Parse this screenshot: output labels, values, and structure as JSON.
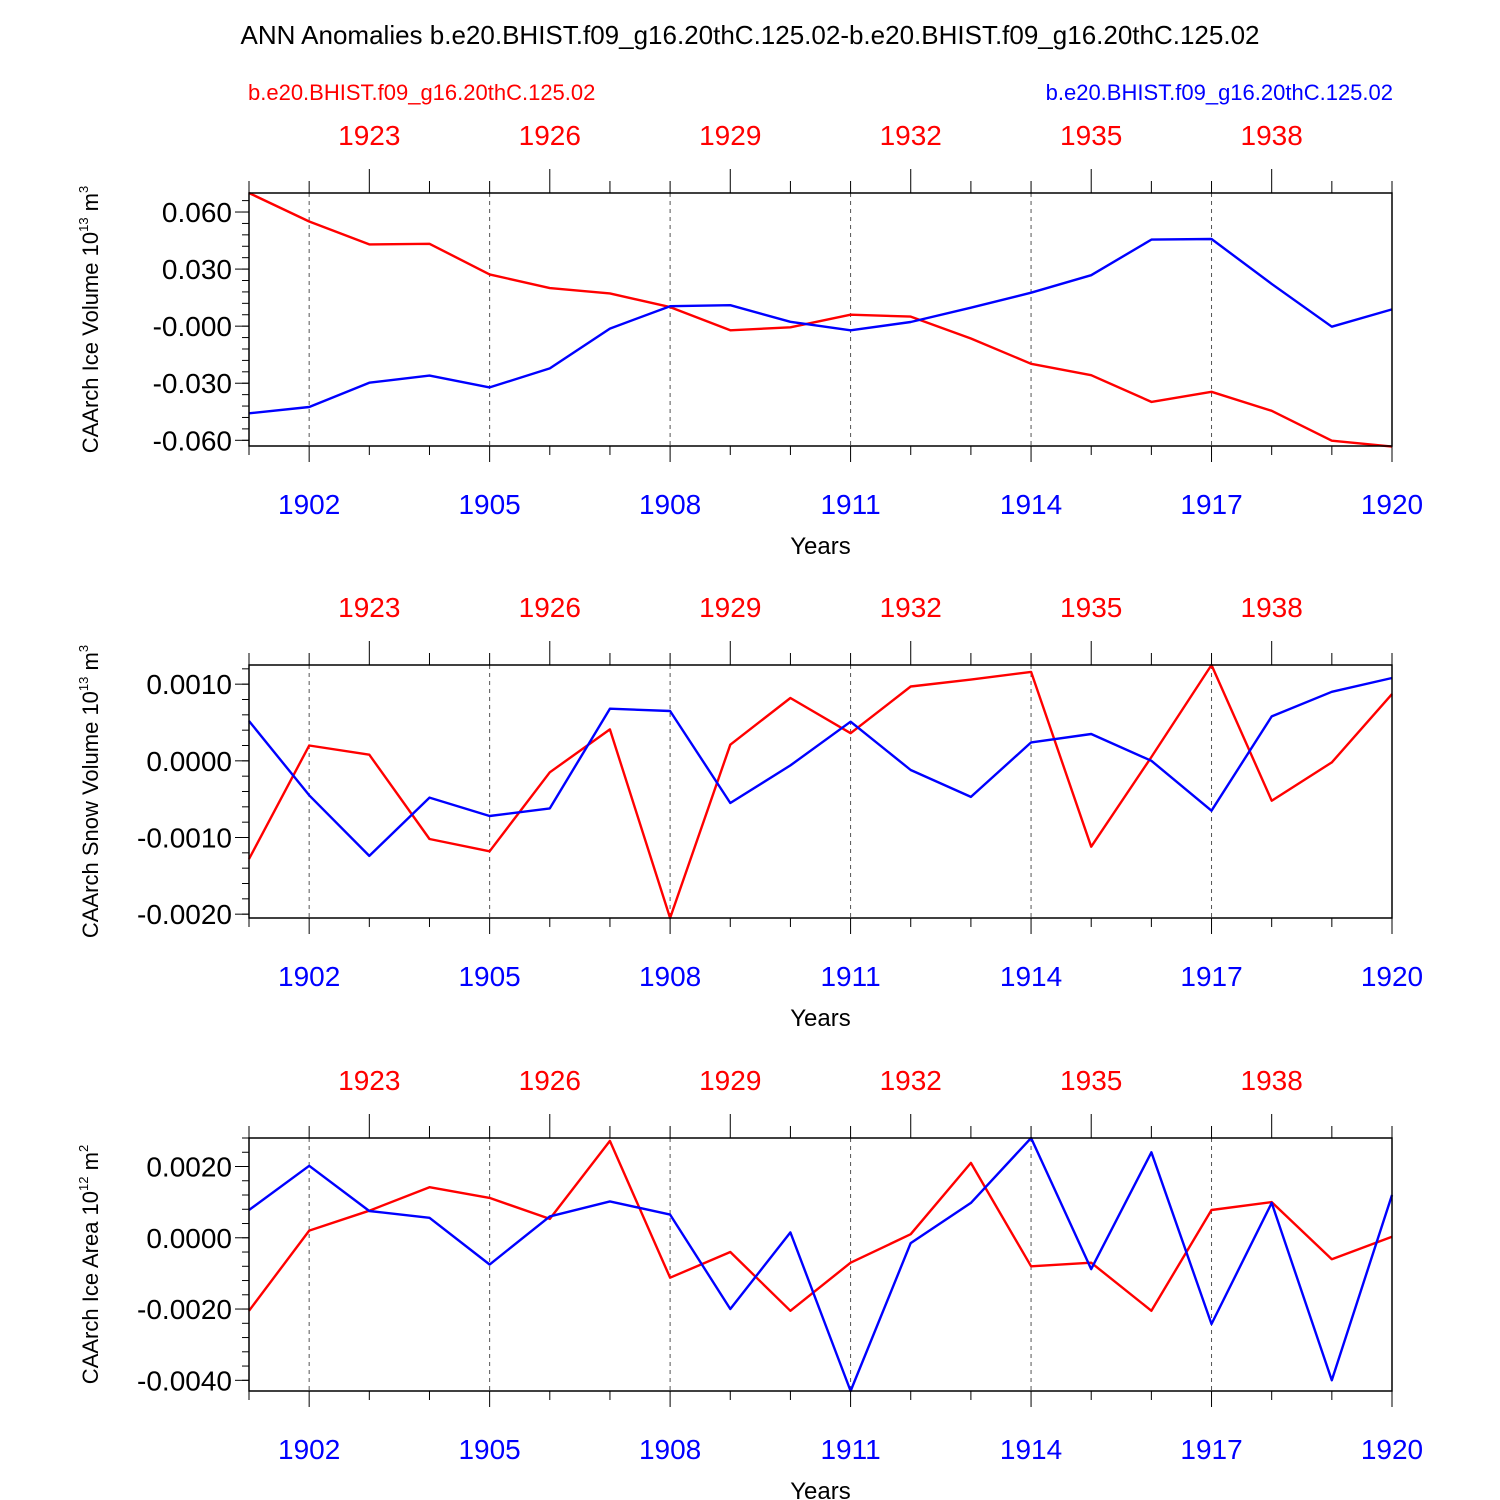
{
  "title": "ANN Anomalies b.e20.BHIST.f09_g16.20thC.125.02-b.e20.BHIST.f09_g16.20thC.125.02",
  "legend": {
    "red": "b.e20.BHIST.f09_g16.20thC.125.02",
    "blue": "b.e20.BHIST.f09_g16.20thC.125.02"
  },
  "colors": {
    "red": "#ff0000",
    "blue": "#0000ff",
    "frame": "#000000"
  },
  "chart_data": [
    {
      "type": "line",
      "ylabel": "CAArch Ice Volume 10^13 m^3",
      "ylabel_parts": {
        "base": "CAArch Ice Volume 10",
        "exp1": "13",
        "mid": " m",
        "exp2": "3"
      },
      "xlabel": "Years",
      "x_bottom": {
        "range": [
          1901,
          1920
        ],
        "ticks": [
          1902,
          1905,
          1908,
          1911,
          1914,
          1917,
          1920
        ],
        "color": "blue"
      },
      "x_top": {
        "range": [
          1921,
          1940
        ],
        "ticks": [
          1923,
          1926,
          1929,
          1932,
          1935,
          1938
        ],
        "color": "red"
      },
      "ylim": [
        -0.063,
        0.07
      ],
      "yticks": [
        {
          "v": 0.06,
          "label": "0.060"
        },
        {
          "v": 0.03,
          "label": "0.030"
        },
        {
          "v": 0.0,
          "label": "-0.000"
        },
        {
          "v": -0.03,
          "label": "-0.030"
        },
        {
          "v": -0.06,
          "label": "-0.060"
        }
      ],
      "yminor": 0.006,
      "series": [
        {
          "name": "b.e20.BHIST.f09_g16.20thC.125.02",
          "color": "red",
          "values": [
            0.07,
            0.055,
            0.043,
            0.0433,
            0.0272,
            0.02,
            0.0172,
            0.01,
            -0.0022,
            -0.0006,
            0.006,
            0.005,
            -0.0065,
            -0.0198,
            -0.0258,
            -0.0398,
            -0.0345,
            -0.0445,
            -0.0602,
            -0.0633
          ]
        },
        {
          "name": "b.e20.BHIST.f09_g16.20thC.125.02",
          "color": "blue",
          "values": [
            -0.0458,
            -0.0425,
            -0.0297,
            -0.026,
            -0.0322,
            -0.0222,
            -0.0013,
            0.0105,
            0.011,
            0.0023,
            -0.0022,
            0.0022,
            0.0097,
            0.0176,
            0.0268,
            0.0455,
            0.0458,
            0.0222,
            -0.0003,
            0.0088
          ]
        }
      ]
    },
    {
      "type": "line",
      "ylabel": "CAArch Snow Volume 10^13 m^3",
      "ylabel_parts": {
        "base": "CAArch Snow Volume 10",
        "exp1": "13",
        "mid": " m",
        "exp2": "3"
      },
      "xlabel": "Years",
      "x_bottom": {
        "range": [
          1901,
          1920
        ],
        "ticks": [
          1902,
          1905,
          1908,
          1911,
          1914,
          1917,
          1920
        ],
        "color": "blue"
      },
      "x_top": {
        "range": [
          1921,
          1940
        ],
        "ticks": [
          1923,
          1926,
          1929,
          1932,
          1935,
          1938
        ],
        "color": "red"
      },
      "ylim": [
        -0.00205,
        0.00125
      ],
      "yticks": [
        {
          "v": 0.001,
          "label": "0.0010"
        },
        {
          "v": 0.0,
          "label": "0.0000"
        },
        {
          "v": -0.001,
          "label": "-0.0010"
        },
        {
          "v": -0.002,
          "label": "-0.0020"
        }
      ],
      "yminor": 0.0002,
      "series": [
        {
          "name": "b.e20.BHIST.f09_g16.20thC.125.02",
          "color": "red",
          "values": [
            -0.00128,
            0.0002,
            8e-05,
            -0.00102,
            -0.00118,
            -0.00015,
            0.00041,
            -0.00205,
            0.00021,
            0.00082,
            0.00036,
            0.00097,
            0.00106,
            0.00116,
            -0.00112,
            5e-05,
            0.00125,
            -0.00052,
            -2e-05,
            0.00087
          ]
        },
        {
          "name": "b.e20.BHIST.f09_g16.20thC.125.02",
          "color": "blue",
          "values": [
            0.00052,
            -0.00045,
            -0.00124,
            -0.00048,
            -0.00072,
            -0.00062,
            0.00068,
            0.00065,
            -0.00055,
            -6e-05,
            0.00051,
            -0.00012,
            -0.00047,
            0.00024,
            0.00035,
            0.0,
            -0.00065,
            0.00058,
            0.0009,
            0.00108
          ]
        }
      ]
    },
    {
      "type": "line",
      "ylabel": "CAArch Ice Area 10^12 m^2",
      "ylabel_parts": {
        "base": "CAArch Ice Area 10",
        "exp1": "12",
        "mid": " m",
        "exp2": "2"
      },
      "xlabel": "Years",
      "x_bottom": {
        "range": [
          1901,
          1920
        ],
        "ticks": [
          1902,
          1905,
          1908,
          1911,
          1914,
          1917,
          1920
        ],
        "color": "blue"
      },
      "x_top": {
        "range": [
          1921,
          1940
        ],
        "ticks": [
          1923,
          1926,
          1929,
          1932,
          1935,
          1938
        ],
        "color": "red"
      },
      "ylim": [
        -0.0043,
        0.0028
      ],
      "yticks": [
        {
          "v": 0.002,
          "label": "0.0020"
        },
        {
          "v": 0.0,
          "label": "0.0000"
        },
        {
          "v": -0.002,
          "label": "-0.0020"
        },
        {
          "v": -0.004,
          "label": "-0.0040"
        }
      ],
      "yminor": 0.0004,
      "series": [
        {
          "name": "b.e20.BHIST.f09_g16.20thC.125.02",
          "color": "red",
          "values": [
            -0.00205,
            0.0002,
            0.00076,
            0.00142,
            0.00112,
            0.00053,
            0.00272,
            -0.00112,
            -0.0004,
            -0.00205,
            -0.0007,
            0.0001,
            0.0021,
            -0.0008,
            -0.0007,
            -0.00205,
            0.00078,
            0.001,
            -0.0006,
            3e-05
          ]
        },
        {
          "name": "b.e20.BHIST.f09_g16.20thC.125.02",
          "color": "blue",
          "values": [
            0.00078,
            0.00202,
            0.00075,
            0.00056,
            -0.00075,
            0.0006,
            0.00102,
            0.00065,
            -0.002,
            0.00015,
            -0.0043,
            -0.00015,
            0.00098,
            0.0028,
            -0.00088,
            0.0024,
            -0.00242,
            0.00098,
            -0.004,
            0.0012
          ]
        }
      ]
    }
  ]
}
